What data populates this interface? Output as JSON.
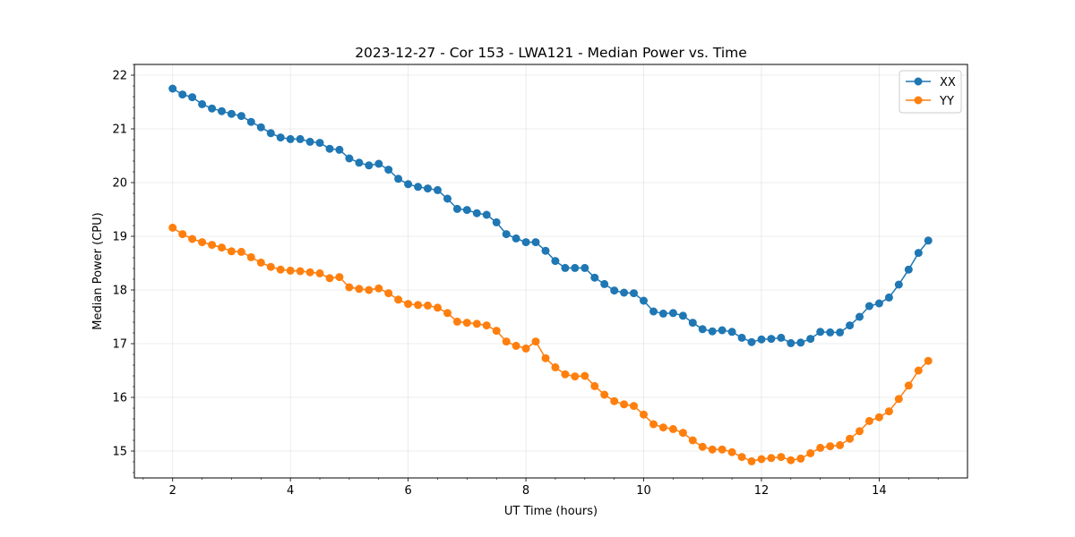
{
  "chart_data": {
    "type": "line",
    "title": "2023-12-27 - Cor 153 - LWA121 - Median Power vs. Time",
    "xlabel": "UT Time (hours)",
    "ylabel": "Median Power (CPU)",
    "xlim": [
      1.35,
      15.5
    ],
    "ylim": [
      14.5,
      22.2
    ],
    "xticks": [
      2,
      4,
      6,
      8,
      10,
      12,
      14
    ],
    "xtick_labels": [
      "2",
      "4",
      "6",
      "8",
      "10",
      "12",
      "14"
    ],
    "yticks": [
      15,
      16,
      17,
      18,
      19,
      20,
      21,
      22
    ],
    "ytick_labels": [
      "15",
      "16",
      "17",
      "18",
      "19",
      "20",
      "21",
      "22"
    ],
    "grid": true,
    "legend_position": "top-right",
    "x": [
      2.0,
      2.167,
      2.333,
      2.5,
      2.667,
      2.833,
      3.0,
      3.167,
      3.333,
      3.5,
      3.667,
      3.833,
      4.0,
      4.167,
      4.333,
      4.5,
      4.667,
      4.833,
      5.0,
      5.167,
      5.333,
      5.5,
      5.667,
      5.833,
      6.0,
      6.167,
      6.333,
      6.5,
      6.667,
      6.833,
      7.0,
      7.167,
      7.333,
      7.5,
      7.667,
      7.833,
      8.0,
      8.167,
      8.333,
      8.5,
      8.667,
      8.833,
      9.0,
      9.167,
      9.333,
      9.5,
      9.667,
      9.833,
      10.0,
      10.167,
      10.333,
      10.5,
      10.667,
      10.833,
      11.0,
      11.167,
      11.333,
      11.5,
      11.667,
      11.833,
      12.0,
      12.167,
      12.333,
      12.5,
      12.667,
      12.833,
      13.0,
      13.167,
      13.333,
      13.5,
      13.667,
      13.833,
      14.0,
      14.167,
      14.333,
      14.5,
      14.667,
      14.833
    ],
    "series": [
      {
        "name": "XX",
        "color": "#1f77b4",
        "values": [
          21.75,
          21.64,
          21.59,
          21.46,
          21.38,
          21.33,
          21.28,
          21.24,
          21.13,
          21.03,
          20.92,
          20.84,
          20.81,
          20.81,
          20.76,
          20.74,
          20.63,
          20.61,
          20.45,
          20.37,
          20.32,
          20.35,
          20.24,
          20.07,
          19.97,
          19.92,
          19.89,
          19.86,
          19.7,
          19.51,
          19.49,
          19.43,
          19.4,
          19.26,
          19.04,
          18.96,
          18.89,
          18.89,
          18.73,
          18.54,
          18.41,
          18.41,
          18.41,
          18.23,
          18.11,
          17.99,
          17.95,
          17.94,
          17.8,
          17.6,
          17.56,
          17.57,
          17.52,
          17.39,
          17.27,
          17.23,
          17.25,
          17.22,
          17.11,
          17.03,
          17.08,
          17.09,
          17.11,
          17.01,
          17.02,
          17.09,
          17.22,
          17.21,
          17.21,
          17.34,
          17.5,
          17.7,
          17.75,
          17.86,
          18.1,
          18.38,
          18.69,
          18.92
        ]
      },
      {
        "name": "YY",
        "color": "#ff7f0e",
        "values": [
          19.16,
          19.04,
          18.95,
          18.89,
          18.84,
          18.79,
          18.72,
          18.71,
          18.61,
          18.51,
          18.43,
          18.38,
          18.36,
          18.35,
          18.33,
          18.31,
          18.22,
          18.24,
          18.05,
          18.02,
          18.0,
          18.03,
          17.94,
          17.82,
          17.74,
          17.72,
          17.71,
          17.67,
          17.57,
          17.41,
          17.39,
          17.37,
          17.34,
          17.24,
          17.04,
          16.96,
          16.91,
          17.04,
          16.73,
          16.56,
          16.43,
          16.39,
          16.4,
          16.21,
          16.05,
          15.93,
          15.87,
          15.84,
          15.68,
          15.5,
          15.44,
          15.41,
          15.34,
          15.2,
          15.08,
          15.03,
          15.03,
          14.98,
          14.89,
          14.81,
          14.85,
          14.87,
          14.89,
          14.83,
          14.86,
          14.96,
          15.06,
          15.09,
          15.11,
          15.23,
          15.37,
          15.56,
          15.63,
          15.74,
          15.97,
          16.22,
          16.5,
          16.68
        ]
      }
    ]
  }
}
